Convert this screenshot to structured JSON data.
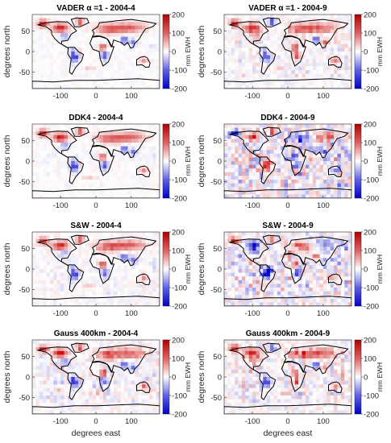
{
  "figure": {
    "y_label": "degrees north",
    "x_label": "degrees east",
    "colorbar_label": "mm EWH"
  },
  "chart_data": [
    {
      "type": "heatmap",
      "title": "VADER α =1 - 2004-4",
      "x_ticks": [
        "-100",
        "0",
        "100"
      ],
      "y_ticks": [
        "50",
        "0",
        "-50"
      ],
      "colorbar_ticks": [
        "200",
        "100",
        "0",
        "-100",
        "-200"
      ],
      "colorbar_range": [
        -200,
        200
      ],
      "colormap": [
        "#0000ff",
        "#ffffff",
        "#cc0000"
      ]
    },
    {
      "type": "heatmap",
      "title": "VADER α =1 - 2004-9",
      "x_ticks": [
        "-100",
        "0",
        "100"
      ],
      "y_ticks": [
        "50",
        "0",
        "-50"
      ],
      "colorbar_ticks": [
        "200",
        "100",
        "0",
        "-100",
        "-200"
      ],
      "colorbar_range": [
        -200,
        200
      ],
      "colormap": [
        "#0000ff",
        "#ffffff",
        "#cc0000"
      ]
    },
    {
      "type": "heatmap",
      "title": "DDK4 - 2004-4",
      "x_ticks": [
        "-100",
        "0",
        "100"
      ],
      "y_ticks": [
        "50",
        "0",
        "-50"
      ],
      "colorbar_ticks": [
        "200",
        "100",
        "0",
        "-100",
        "-200"
      ],
      "colorbar_range": [
        -200,
        200
      ],
      "colormap": [
        "#0000ff",
        "#ffffff",
        "#cc0000"
      ]
    },
    {
      "type": "heatmap",
      "title": "DDK4 - 2004-9",
      "x_ticks": [
        "-100",
        "0",
        "100"
      ],
      "y_ticks": [
        "50",
        "0",
        "-50"
      ],
      "colorbar_ticks": [
        "200",
        "100",
        "0",
        "-100",
        "-200"
      ],
      "colorbar_range": [
        -200,
        200
      ],
      "colormap": [
        "#0000ff",
        "#ffffff",
        "#cc0000"
      ]
    },
    {
      "type": "heatmap",
      "title": "S&W  - 2004-4",
      "x_ticks": [
        "-100",
        "0",
        "100"
      ],
      "y_ticks": [
        "50",
        "0",
        "-50"
      ],
      "colorbar_ticks": [
        "200",
        "100",
        "0",
        "-100",
        "-200"
      ],
      "colorbar_range": [
        -200,
        200
      ],
      "colormap": [
        "#0000ff",
        "#ffffff",
        "#cc0000"
      ]
    },
    {
      "type": "heatmap",
      "title": "S&W - 2004-9",
      "x_ticks": [
        "-100",
        "0",
        "100"
      ],
      "y_ticks": [
        "50",
        "0",
        "-50"
      ],
      "colorbar_ticks": [
        "200",
        "100",
        "0",
        "-100",
        "-200"
      ],
      "colorbar_range": [
        -200,
        200
      ],
      "colormap": [
        "#0000ff",
        "#ffffff",
        "#cc0000"
      ]
    },
    {
      "type": "heatmap",
      "title": "Gauss 400km - 2004-4",
      "x_ticks": [
        "-100",
        "0",
        "100"
      ],
      "y_ticks": [
        "50",
        "0",
        "-50"
      ],
      "colorbar_ticks": [
        "200",
        "100",
        "0",
        "-100",
        "-200"
      ],
      "colorbar_range": [
        -200,
        200
      ],
      "colormap": [
        "#0000ff",
        "#ffffff",
        "#cc0000"
      ]
    },
    {
      "type": "heatmap",
      "title": "Gauss 400km - 2004-9",
      "x_ticks": [
        "-100",
        "0",
        "100"
      ],
      "y_ticks": [
        "50",
        "0",
        "-50"
      ],
      "colorbar_ticks": [
        "200",
        "100",
        "0",
        "-100",
        "-200"
      ],
      "colorbar_range": [
        -200,
        200
      ],
      "colormap": [
        "#0000ff",
        "#ffffff",
        "#cc0000"
      ]
    }
  ]
}
